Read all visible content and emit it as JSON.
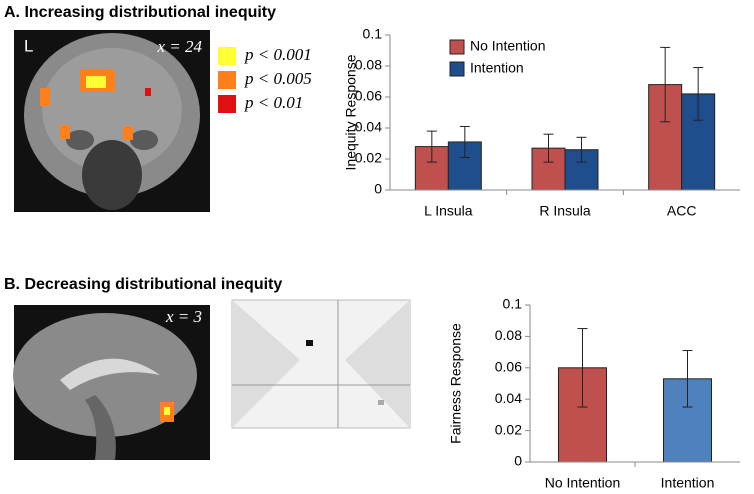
{
  "panels": [
    {
      "title": "A. Increasing distributional inequity",
      "image_labels": [
        "L",
        "x = 24"
      ],
      "threshold_legend": [
        {
          "label": "p < 0.001",
          "color": "#ffff33"
        },
        {
          "label": "p < 0.005",
          "color": "#ff7f1a"
        },
        {
          "label": "p < 0.01",
          "color": "#e01010"
        }
      ]
    },
    {
      "title": "B. Decreasing distributional inequity",
      "image_labels": [
        "x = 3"
      ]
    }
  ],
  "chart_data": [
    {
      "type": "bar",
      "ylabel": "Inequity Response",
      "categories": [
        "L Insula",
        "R Insula",
        "ACC"
      ],
      "series": [
        {
          "name": "No Intention",
          "color": "#c0504d",
          "values": [
            0.028,
            0.027,
            0.068
          ],
          "errors": [
            0.01,
            0.009,
            0.024
          ]
        },
        {
          "name": "Intention",
          "color": "#1f4e8c",
          "values": [
            0.031,
            0.026,
            0.062
          ],
          "errors": [
            0.01,
            0.008,
            0.017
          ]
        }
      ],
      "ylim": [
        0,
        0.1
      ],
      "yticks": [
        0,
        0.02,
        0.04,
        0.06,
        0.08,
        0.1
      ],
      "legend": "upper left"
    },
    {
      "type": "bar",
      "ylabel": "Fairness Response",
      "categories": [
        "No Intention",
        "Intention"
      ],
      "values": [
        0.06,
        0.053
      ],
      "errors": [
        0.025,
        0.018
      ],
      "colors": [
        "#c0504d",
        "#4f81bd"
      ],
      "ylim": [
        0,
        0.1
      ],
      "yticks": [
        0,
        0.02,
        0.04,
        0.06,
        0.08,
        0.1
      ]
    }
  ]
}
